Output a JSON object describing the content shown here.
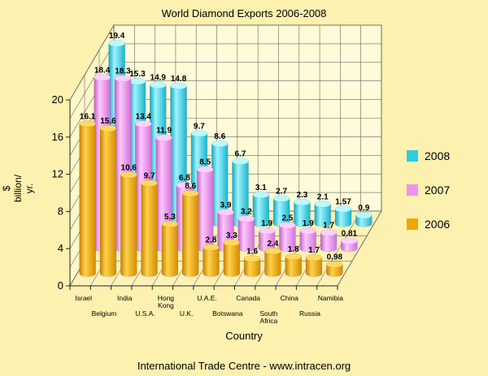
{
  "chart_data": {
    "type": "bar",
    "title": "World Diamond Exports 2006-2008",
    "xlabel": "Country",
    "ylabel": [
      "$",
      "billion/",
      "yr."
    ],
    "ylim": [
      0,
      20
    ],
    "yticks": [
      "0",
      "4",
      "8",
      "12",
      "16",
      "20"
    ],
    "categories": [
      [
        "Israel"
      ],
      [
        "Belgium"
      ],
      [
        "India"
      ],
      [
        "U.S.A."
      ],
      [
        "Hong",
        "Kong"
      ],
      [
        "U.K."
      ],
      [
        "U.A.E."
      ],
      [
        "Botswana"
      ],
      [
        "Canada"
      ],
      [
        "South",
        "Africa"
      ],
      [
        "China"
      ],
      [
        "Russia"
      ],
      [
        "Namibia"
      ]
    ],
    "series": [
      {
        "name": "2006",
        "color": "#f2a400",
        "values": [
          16.1,
          15.6,
          10.6,
          9.7,
          5.3,
          8.6,
          2.8,
          3.3,
          1.6,
          2.4,
          1.8,
          1.7,
          0.98
        ],
        "labels": [
          "16.1",
          "15.6",
          "10.6",
          "9.7",
          "5.3",
          "8.6",
          "2.8",
          "3.3",
          "1.6",
          "2.4",
          "1.8",
          "1.7",
          "0.98"
        ]
      },
      {
        "name": "2007",
        "color": "#ee92ee",
        "values": [
          18.4,
          18.3,
          13.4,
          11.9,
          6.8,
          8.5,
          3.9,
          3.2,
          1.9,
          2.5,
          1.9,
          1.7,
          0.81
        ],
        "labels": [
          "18.4",
          "18.3",
          "13.4",
          "11.9",
          "6.8",
          "8.5",
          "3.9",
          "3.2",
          "1.9",
          "2.5",
          "1.9",
          "1.7",
          "0.81"
        ]
      },
      {
        "name": "2008",
        "color": "#2ecde0",
        "values": [
          19.4,
          15.3,
          14.9,
          14.8,
          9.7,
          8.6,
          6.7,
          3.1,
          2.7,
          2.3,
          2.1,
          1.57,
          0.9
        ],
        "labels": [
          "19.4",
          "15.3",
          "14.9",
          "14.8",
          "9.7",
          "8.6",
          "6.7",
          "3.1",
          "2.7",
          "2.3",
          "2.1",
          "1.57",
          "0.9"
        ]
      }
    ],
    "legend": {
      "position": "right",
      "order": [
        "2008",
        "2007",
        "2006"
      ]
    },
    "grid": true
  },
  "footer": "International Trade Centre -  www.intracen.org"
}
